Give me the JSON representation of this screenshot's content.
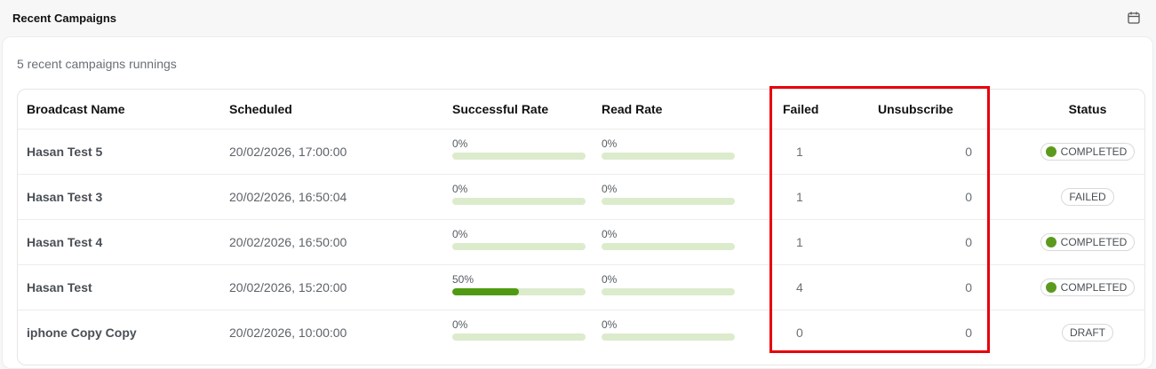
{
  "header": {
    "title": "Recent Campaigns",
    "icon": "calendar-icon"
  },
  "subtitle": "5 recent campaigns runnings",
  "table": {
    "columns": [
      "Broadcast Name",
      "Scheduled",
      "Successful Rate",
      "Read Rate",
      "Failed",
      "Unsubscribe",
      "Status"
    ],
    "rows": [
      {
        "name": "Hasan Test 5",
        "scheduled": "20/02/2026, 17:00:00",
        "successful_rate": "0%",
        "successful_pct": 0,
        "read_rate": "0%",
        "read_pct": 0,
        "failed": "1",
        "unsubscribe": "0",
        "status": "COMPLETED",
        "status_dot": true
      },
      {
        "name": "Hasan Test 3",
        "scheduled": "20/02/2026, 16:50:04",
        "successful_rate": "0%",
        "successful_pct": 0,
        "read_rate": "0%",
        "read_pct": 0,
        "failed": "1",
        "unsubscribe": "0",
        "status": "FAILED",
        "status_dot": false
      },
      {
        "name": "Hasan Test 4",
        "scheduled": "20/02/2026, 16:50:00",
        "successful_rate": "0%",
        "successful_pct": 0,
        "read_rate": "0%",
        "read_pct": 0,
        "failed": "1",
        "unsubscribe": "0",
        "status": "COMPLETED",
        "status_dot": true
      },
      {
        "name": "Hasan Test",
        "scheduled": "20/02/2026, 15:20:00",
        "successful_rate": "50%",
        "successful_pct": 50,
        "read_rate": "0%",
        "read_pct": 0,
        "failed": "4",
        "unsubscribe": "0",
        "status": "COMPLETED",
        "status_dot": true
      },
      {
        "name": "iphone Copy Copy",
        "scheduled": "20/02/2026, 10:00:00",
        "successful_rate": "0%",
        "successful_pct": 0,
        "read_rate": "0%",
        "read_pct": 0,
        "failed": "0",
        "unsubscribe": "0",
        "status": "DRAFT",
        "status_dot": false
      }
    ]
  },
  "colors": {
    "accent_green": "#4f9a12",
    "bar_track": "#dcebcc",
    "status_dot": "#5c9a1e",
    "highlight": "#e8000b"
  }
}
